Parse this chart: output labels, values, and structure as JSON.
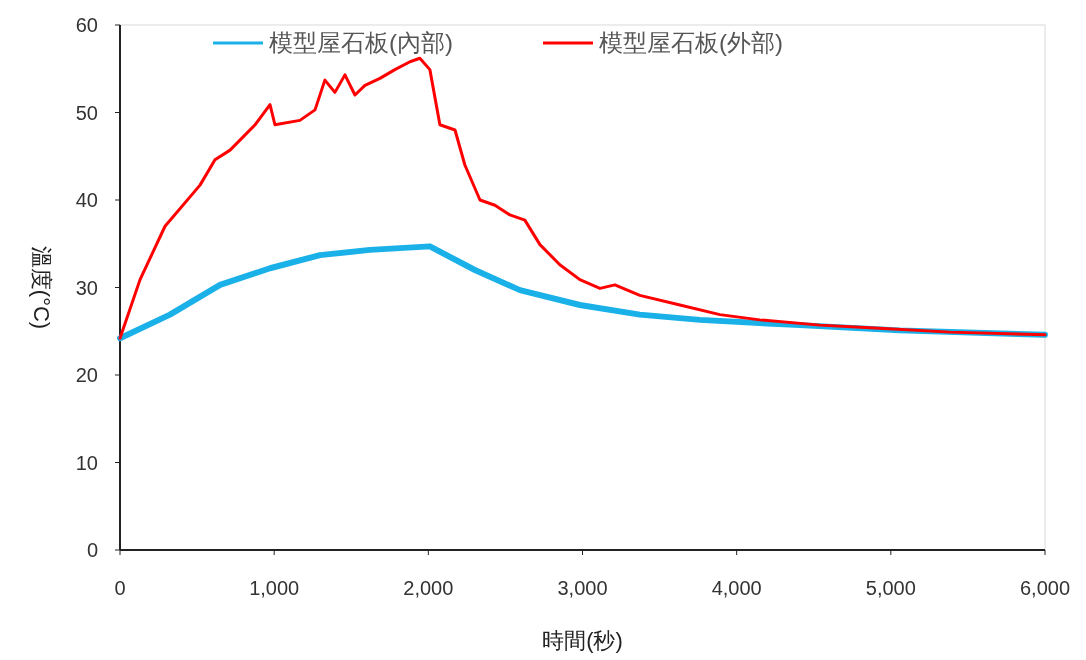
{
  "chart_data": {
    "type": "line",
    "xlabel": "時間(秒)",
    "ylabel": "溫度(°C)",
    "legend": "top",
    "grid": false,
    "xlim": [
      0,
      6000
    ],
    "xticks": [
      0,
      {
        "value": 1000,
        "label": "1,000"
      },
      {
        "value": 2000,
        "label": "2,000"
      },
      {
        "value": 3000,
        "label": "3,000"
      },
      {
        "value": 4000,
        "label": "4,000"
      },
      {
        "value": 5000,
        "label": "5,000"
      },
      {
        "value": 6000,
        "label": "6,000"
      }
    ],
    "ylim": [
      0,
      60
    ],
    "yticks": [
      0,
      10,
      20,
      30,
      40,
      50,
      60
    ],
    "series": [
      {
        "name": "模型屋石板(內部)",
        "color": "#1ab0e8",
        "x": [
          0,
          324,
          649,
          973,
          1297,
          1621,
          2010,
          2302,
          2594,
          2983,
          3372,
          3761,
          4410,
          5058,
          6000
        ],
        "values": [
          24.2,
          26.9,
          30.3,
          32.2,
          33.7,
          34.3,
          34.7,
          32,
          29.7,
          28,
          26.9,
          26.3,
          25.7,
          25.1,
          24.6
        ]
      },
      {
        "name": "模型屋石板(外部)",
        "color": "#ff0000",
        "x": [
          0,
          130,
          292,
          519,
          616,
          714,
          876,
          973,
          1005,
          1167,
          1265,
          1329,
          1394,
          1459,
          1524,
          1589,
          1686,
          1783,
          1881,
          1945,
          2010,
          2075,
          2173,
          2237,
          2335,
          2432,
          2529,
          2626,
          2724,
          2853,
          2983,
          3113,
          3210,
          3372,
          3632,
          3891,
          4150,
          4540,
          4864,
          5383,
          6000
        ],
        "values": [
          24.2,
          30.9,
          37,
          41.7,
          44.6,
          45.7,
          48.6,
          50.9,
          48.6,
          49.1,
          50.3,
          53.7,
          52.3,
          54.3,
          52,
          53.1,
          53.9,
          54.9,
          55.8,
          56.2,
          54.9,
          48.6,
          48,
          44,
          40,
          39.4,
          38.3,
          37.7,
          34.9,
          32.6,
          30.9,
          29.9,
          30.3,
          29.1,
          28,
          26.9,
          26.3,
          25.7,
          25.4,
          24.9,
          24.6
        ]
      }
    ]
  }
}
